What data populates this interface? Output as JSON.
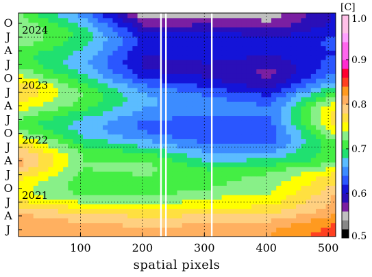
{
  "chart_data": {
    "type": "heatmap",
    "title": "",
    "xlabel": "spatial pixels",
    "ylabel": "",
    "xlim": [
      0,
      512
    ],
    "x_ticks": [
      100,
      200,
      300,
      400,
      500
    ],
    "y_month_ticks": [
      "J",
      "A",
      "J",
      "O",
      "J",
      "A",
      "J",
      "O",
      "J",
      "A",
      "J",
      "O",
      "J",
      "A",
      "J",
      "O"
    ],
    "year_labels": [
      "2021",
      "2022",
      "2023",
      "2024"
    ],
    "colorbar": {
      "unit_label": "[C]",
      "min": 0.5,
      "max": 1.0,
      "ticks": [
        "1.0",
        "0.9",
        "0.8",
        "0.7",
        "0.6",
        "0.5"
      ]
    },
    "gaps_x": [
      230,
      238,
      312
    ],
    "grid": "dotted",
    "description_rows": [
      {
        "year": "2021",
        "month": "J",
        "values_left_to_right": [
          0.81,
          0.8,
          0.79,
          0.79,
          0.8,
          0.83
        ]
      },
      {
        "year": "2021",
        "month": "J",
        "values_left_to_right": [
          0.76,
          0.74,
          0.74,
          0.76,
          0.77,
          0.82
        ]
      },
      {
        "year": "2022",
        "month": "J",
        "values_left_to_right": [
          0.79,
          0.7,
          0.7,
          0.66,
          0.67,
          0.7
        ]
      },
      {
        "year": "2022",
        "month": "J",
        "values_left_to_right": [
          0.73,
          0.69,
          0.65,
          0.64,
          0.64,
          0.77
        ]
      },
      {
        "year": "2023",
        "month": "J",
        "values_left_to_right": [
          0.76,
          0.7,
          0.64,
          0.62,
          0.6,
          0.7
        ]
      },
      {
        "year": "2023",
        "month": "J",
        "values_left_to_right": [
          0.72,
          0.68,
          0.6,
          0.61,
          0.59,
          0.6
        ]
      },
      {
        "year": "2024",
        "month": "J",
        "values_left_to_right": [
          0.72,
          0.66,
          0.56,
          0.57,
          0.57,
          0.62
        ]
      }
    ]
  }
}
